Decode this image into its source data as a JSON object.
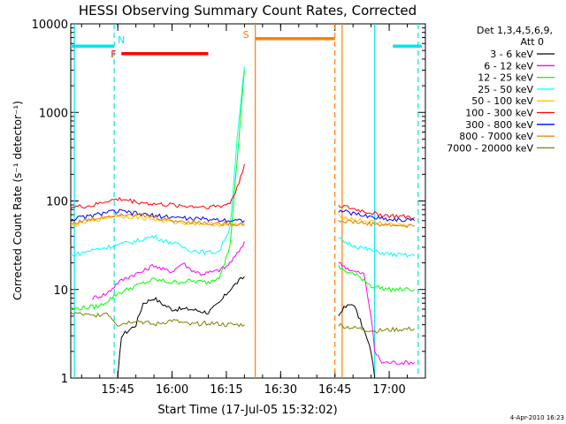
{
  "chart_data": {
    "type": "line",
    "title": "HESSI Observing Summary Count Rates, Corrected",
    "xlabel": "Start Time (17-Jul-05 15:32:02)",
    "ylabel": "Corrected Count Rate (s⁻¹ detector⁻¹)",
    "y_scale": "log",
    "ylim": [
      1,
      10000
    ],
    "xlim": [
      "15:32",
      "17:10"
    ],
    "x_ticks": [
      "15:45",
      "16:00",
      "16:15",
      "16:30",
      "16:45",
      "17:00"
    ],
    "y_ticks": [
      "1",
      "10",
      "100",
      "1000",
      "10000"
    ],
    "grid": false,
    "legend_header": [
      "Det 1,3,4,5,6,9,",
      "Att 0"
    ],
    "legend_position": "right",
    "flag_bars": [
      {
        "label": "N",
        "color": "#00e5ee",
        "segments": [
          [
            "15:32",
            "15:44"
          ],
          [
            "17:01",
            "17:09"
          ]
        ],
        "level": 5600
      },
      {
        "label": "F",
        "color": "#ff0000",
        "segments": [
          [
            "15:46",
            "16:10"
          ]
        ],
        "level": 4600
      },
      {
        "label": "S",
        "color": "#ff7f00",
        "segments": [
          [
            "16:23",
            "16:45"
          ]
        ],
        "level": 6800
      }
    ],
    "event_lines": [
      {
        "time": "15:33",
        "color": "#00e5ee",
        "style": "solid"
      },
      {
        "time": "15:44",
        "color": "#00e5ee",
        "style": "dashed"
      },
      {
        "time": "16:23",
        "color": "#ff7f00",
        "style": "solid"
      },
      {
        "time": "16:45",
        "color": "#ff7f00",
        "style": "dashed"
      },
      {
        "time": "16:47",
        "color": "#ff7f00",
        "style": "solid"
      },
      {
        "time": "16:56",
        "color": "#00e5ee",
        "style": "solid"
      },
      {
        "time": "17:08",
        "color": "#00e5ee",
        "style": "dashed"
      }
    ],
    "series": [
      {
        "name": "3 - 6 keV",
        "color": "#000000",
        "segments": [
          [
            [
              "15:45",
              1
            ],
            [
              "15:46",
              3
            ],
            [
              "15:50",
              4
            ],
            [
              "15:52",
              7
            ],
            [
              "15:55",
              8
            ],
            [
              "15:57",
              7
            ],
            [
              "16:00",
              6
            ],
            [
              "16:05",
              6
            ],
            [
              "16:10",
              5.5
            ],
            [
              "16:13",
              7
            ],
            [
              "16:16",
              10
            ],
            [
              "16:18",
              12
            ],
            [
              "16:20",
              14
            ]
          ],
          [
            [
              "16:46",
              5
            ],
            [
              "16:47",
              6
            ],
            [
              "16:50",
              7
            ],
            [
              "16:53",
              3.5
            ],
            [
              "16:55",
              2
            ],
            [
              "16:56",
              1
            ]
          ]
        ]
      },
      {
        "name": "6 - 12 keV",
        "color": "#ff00ff",
        "segments": [
          [
            [
              "15:38",
              8
            ],
            [
              "15:42",
              9
            ],
            [
              "15:45",
              12
            ],
            [
              "15:48",
              14
            ],
            [
              "15:50",
              15
            ],
            [
              "15:52",
              16
            ],
            [
              "15:55",
              19
            ],
            [
              "15:57",
              17
            ],
            [
              "16:00",
              16
            ],
            [
              "16:03",
              20
            ],
            [
              "16:05",
              17
            ],
            [
              "16:08",
              15
            ],
            [
              "16:12",
              16
            ],
            [
              "16:15",
              18
            ],
            [
              "16:18",
              25
            ],
            [
              "16:20",
              35
            ]
          ],
          [
            [
              "16:46",
              20
            ],
            [
              "16:48",
              18
            ],
            [
              "16:50",
              16
            ],
            [
              "16:53",
              15
            ],
            [
              "16:55",
              5
            ],
            [
              "16:56",
              2
            ],
            [
              "16:58",
              1.5
            ],
            [
              "17:07",
              1.5
            ]
          ]
        ]
      },
      {
        "name": "12 - 25 keV",
        "color": "#00ff00",
        "segments": [
          [
            [
              "15:32",
              6
            ],
            [
              "15:40",
              6.5
            ],
            [
              "15:45",
              9
            ],
            [
              "15:50",
              11
            ],
            [
              "15:55",
              13
            ],
            [
              "16:00",
              12
            ],
            [
              "16:05",
              12.5
            ],
            [
              "16:10",
              12
            ],
            [
              "16:13",
              14
            ],
            [
              "16:16",
              30
            ],
            [
              "16:18",
              300
            ],
            [
              "16:20",
              3000
            ]
          ],
          [
            [
              "16:46",
              18
            ],
            [
              "16:48",
              16
            ],
            [
              "16:50",
              15
            ],
            [
              "16:53",
              13
            ],
            [
              "16:55",
              11
            ],
            [
              "17:00",
              10
            ],
            [
              "17:07",
              10
            ]
          ]
        ]
      },
      {
        "name": "25 - 50 keV",
        "color": "#00ffff",
        "segments": [
          [
            [
              "15:32",
              24
            ],
            [
              "15:38",
              28
            ],
            [
              "15:42",
              30
            ],
            [
              "15:45",
              32
            ],
            [
              "15:50",
              35
            ],
            [
              "15:55",
              40
            ],
            [
              "15:58",
              35
            ],
            [
              "16:00",
              34
            ],
            [
              "16:05",
              28
            ],
            [
              "16:10",
              26
            ],
            [
              "16:13",
              27
            ],
            [
              "16:16",
              50
            ],
            [
              "16:18",
              500
            ],
            [
              "16:20",
              3300
            ]
          ],
          [
            [
              "16:46",
              38
            ],
            [
              "16:48",
              34
            ],
            [
              "16:52",
              30
            ],
            [
              "16:56",
              27
            ],
            [
              "17:00",
              25
            ],
            [
              "17:07",
              24
            ]
          ]
        ]
      },
      {
        "name": "50 - 100 keV",
        "color": "#ffc000",
        "segments": [
          [
            [
              "15:32",
              52
            ],
            [
              "15:38",
              60
            ],
            [
              "15:44",
              68
            ],
            [
              "15:50",
              66
            ],
            [
              "15:55",
              62
            ],
            [
              "16:00",
              58
            ],
            [
              "16:05",
              56
            ],
            [
              "16:10",
              55
            ],
            [
              "16:15",
              54
            ],
            [
              "16:20",
              54
            ]
          ],
          [
            [
              "16:46",
              68
            ],
            [
              "16:50",
              62
            ],
            [
              "16:55",
              58
            ],
            [
              "17:00",
              55
            ],
            [
              "17:07",
              52
            ]
          ]
        ]
      },
      {
        "name": "100 - 300 keV",
        "color": "#ff0000",
        "segments": [
          [
            [
              "15:32",
              85
            ],
            [
              "15:38",
              88
            ],
            [
              "15:42",
              100
            ],
            [
              "15:46",
              105
            ],
            [
              "15:50",
              98
            ],
            [
              "15:55",
              92
            ],
            [
              "16:00",
              90
            ],
            [
              "16:05",
              87
            ],
            [
              "16:10",
              86
            ],
            [
              "16:14",
              88
            ],
            [
              "16:16",
              95
            ],
            [
              "16:18",
              140
            ],
            [
              "16:20",
              260
            ]
          ],
          [
            [
              "16:46",
              90
            ],
            [
              "16:48",
              85
            ],
            [
              "16:52",
              78
            ],
            [
              "16:56",
              72
            ],
            [
              "17:00",
              68
            ],
            [
              "17:07",
              65
            ]
          ]
        ]
      },
      {
        "name": "300 - 800 keV",
        "color": "#0000ff",
        "segments": [
          [
            [
              "15:32",
              62
            ],
            [
              "15:38",
              68
            ],
            [
              "15:42",
              75
            ],
            [
              "15:46",
              76
            ],
            [
              "15:50",
              72
            ],
            [
              "15:55",
              68
            ],
            [
              "16:00",
              66
            ],
            [
              "16:05",
              63
            ],
            [
              "16:10",
              62
            ],
            [
              "16:15",
              61
            ],
            [
              "16:20",
              60
            ]
          ],
          [
            [
              "16:46",
              78
            ],
            [
              "16:50",
              72
            ],
            [
              "16:55",
              66
            ],
            [
              "17:00",
              62
            ],
            [
              "17:07",
              60
            ]
          ]
        ]
      },
      {
        "name": "800 - 7000 keV",
        "color": "#e08000",
        "segments": [
          [
            [
              "15:32",
              56
            ],
            [
              "15:38",
              62
            ],
            [
              "15:44",
              70
            ],
            [
              "15:48",
              72
            ],
            [
              "15:52",
              68
            ],
            [
              "15:55",
              65
            ],
            [
              "16:00",
              60
            ],
            [
              "16:05",
              58
            ],
            [
              "16:10",
              56
            ],
            [
              "16:15",
              55
            ],
            [
              "16:20",
              55
            ]
          ],
          [
            [
              "16:46",
              60
            ],
            [
              "16:50",
              58
            ],
            [
              "16:55",
              55
            ],
            [
              "17:00",
              53
            ],
            [
              "17:07",
              52
            ]
          ]
        ]
      },
      {
        "name": "7000 - 20000 keV",
        "color": "#808000",
        "segments": [
          [
            [
              "15:32",
              5.5
            ],
            [
              "15:38",
              5
            ],
            [
              "15:42",
              5.5
            ],
            [
              "15:45",
              4
            ],
            [
              "15:50",
              4.5
            ],
            [
              "15:55",
              4
            ],
            [
              "16:00",
              4.5
            ],
            [
              "16:05",
              4
            ],
            [
              "16:10",
              4.2
            ],
            [
              "16:15",
              4
            ],
            [
              "16:20",
              4
            ]
          ],
          [
            [
              "16:46",
              4
            ],
            [
              "16:48",
              3.8
            ],
            [
              "16:52",
              3.6
            ],
            [
              "16:56",
              3.4
            ],
            [
              "17:00",
              3.5
            ],
            [
              "17:07",
              3.6
            ]
          ]
        ]
      }
    ]
  },
  "footer": {
    "timestamp": "4-Apr-2010 16:23"
  }
}
